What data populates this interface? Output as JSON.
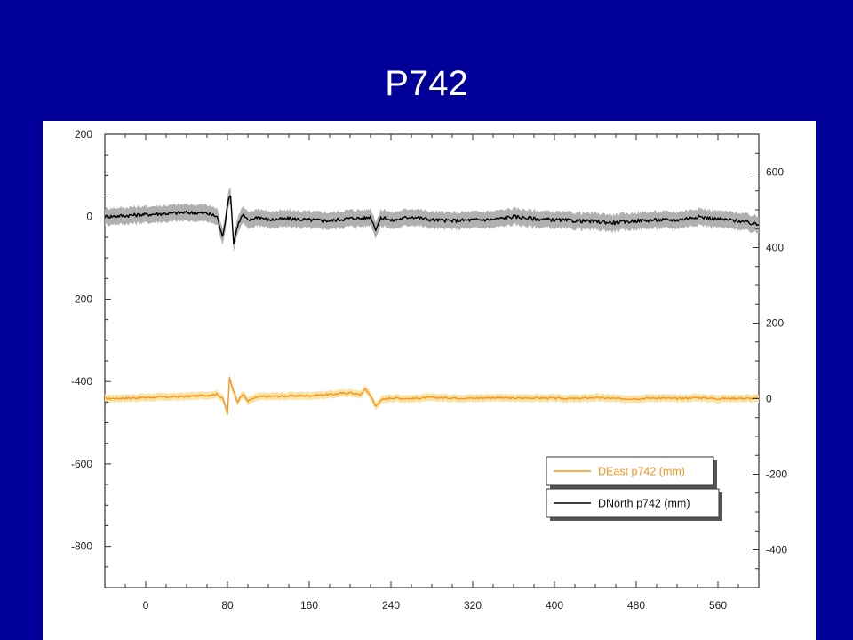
{
  "slide": {
    "title": "P742"
  },
  "colors": {
    "background": "#000099",
    "title": "#ffffff",
    "panel": "#ffffff",
    "north_line": "#000000",
    "north_band": "#b0b0b0",
    "east_line": "#f7941d",
    "east_band": "#fbe3a6",
    "east_legend_text": "#f7941d"
  },
  "chart_data": {
    "type": "line",
    "title": "",
    "xlabel": "",
    "ylabel": "",
    "y2label": "",
    "xlim": [
      -40,
      600
    ],
    "ylim": [
      -900,
      200
    ],
    "y2lim": [
      -500,
      700
    ],
    "xticks": [
      0,
      80,
      160,
      240,
      320,
      400,
      480,
      560
    ],
    "yticks": [
      200,
      0,
      -200,
      -400,
      -600,
      -800
    ],
    "y2ticks": [
      600,
      400,
      200,
      0,
      -200,
      -400
    ],
    "grid": false,
    "legend_position": "bottom-right",
    "series": [
      {
        "name": "DEast p742 (mm)",
        "color": "#f7941d",
        "axis": "right",
        "uncertainty_mm": 10,
        "x": [
          -40,
          0,
          40,
          60,
          70,
          75,
          78,
          80,
          82,
          85,
          90,
          95,
          100,
          110,
          120,
          140,
          160,
          180,
          200,
          210,
          215,
          220,
          225,
          230,
          240,
          260,
          280,
          300,
          320,
          340,
          360,
          380,
          400,
          420,
          440,
          460,
          480,
          500,
          520,
          540,
          560,
          580,
          600
        ],
        "y": [
          0,
          3,
          6,
          9,
          12,
          2,
          -20,
          -40,
          55,
          28,
          -8,
          12,
          -6,
          5,
          6,
          7,
          8,
          11,
          16,
          10,
          26,
          8,
          -20,
          -4,
          2,
          0,
          3,
          2,
          1,
          3,
          1,
          2,
          1,
          0,
          3,
          0,
          0,
          2,
          0,
          3,
          0,
          1,
          0
        ]
      },
      {
        "name": "DNorth p742 (mm)",
        "color": "#000000",
        "axis": "left",
        "uncertainty_mm": 20,
        "x": [
          -40,
          0,
          40,
          60,
          70,
          75,
          78,
          80,
          83,
          86,
          90,
          95,
          100,
          110,
          120,
          140,
          160,
          180,
          200,
          215,
          220,
          225,
          230,
          235,
          240,
          260,
          280,
          300,
          320,
          340,
          360,
          380,
          400,
          420,
          440,
          460,
          480,
          500,
          520,
          540,
          560,
          580,
          600
        ],
        "y": [
          0,
          5,
          10,
          8,
          0,
          -50,
          -10,
          30,
          55,
          -65,
          -20,
          5,
          -10,
          0,
          -8,
          -5,
          -8,
          -10,
          -4,
          -4,
          0,
          -30,
          -5,
          -3,
          -10,
          0,
          -8,
          -10,
          -8,
          -7,
          0,
          -5,
          -8,
          -10,
          -12,
          -15,
          -10,
          -8,
          -8,
          0,
          -6,
          -10,
          -20
        ]
      }
    ]
  }
}
